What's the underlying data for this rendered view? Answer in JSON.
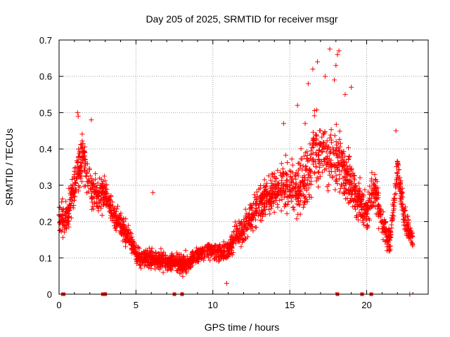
{
  "chart_data": {
    "type": "scatter",
    "title": "Day 205 of 2025, SRMTID for receiver msgr",
    "xlabel": "GPS time / hours",
    "ylabel": "SRMTID / TECUs",
    "xlim": [
      0,
      24
    ],
    "ylim": [
      0,
      0.7
    ],
    "xticks": [
      0,
      5,
      10,
      15,
      20
    ],
    "xtick_labels": [
      "0",
      "5",
      "10",
      "15",
      "20"
    ],
    "yticks": [
      0,
      0.1,
      0.2,
      0.3,
      0.4,
      0.5,
      0.6,
      0.7
    ],
    "ytick_labels": [
      "0",
      "0.1",
      "0.2",
      "0.3",
      "0.4",
      "0.5",
      "0.6",
      "0.7"
    ],
    "grid": true,
    "marker": "plus",
    "color": "#ff0000",
    "zero_markers_x": [
      0.25,
      0.3,
      2.85,
      3.0,
      7.5,
      8.0,
      18.1,
      19.7,
      20.3
    ],
    "trend": {
      "x": [
        0,
        0.5,
        1,
        1.5,
        2,
        2.5,
        3,
        3.5,
        4,
        4.5,
        5,
        5.5,
        6,
        6.5,
        7,
        7.5,
        8,
        8.5,
        9,
        9.5,
        10,
        10.5,
        11,
        11.5,
        12,
        12.5,
        13,
        13.5,
        14,
        14.5,
        15,
        15.5,
        16,
        16.5,
        17,
        17.5,
        18,
        18.5,
        19,
        19.5,
        20,
        20.5,
        21,
        21.5,
        22,
        22.5,
        23
      ],
      "y": [
        0.22,
        0.2,
        0.3,
        0.38,
        0.3,
        0.27,
        0.28,
        0.22,
        0.19,
        0.16,
        0.11,
        0.1,
        0.1,
        0.09,
        0.09,
        0.09,
        0.08,
        0.09,
        0.11,
        0.12,
        0.12,
        0.11,
        0.12,
        0.16,
        0.18,
        0.21,
        0.25,
        0.27,
        0.28,
        0.3,
        0.3,
        0.29,
        0.3,
        0.38,
        0.4,
        0.37,
        0.38,
        0.34,
        0.3,
        0.26,
        0.22,
        0.3,
        0.2,
        0.14,
        0.35,
        0.2,
        0.15
      ],
      "spread": [
        0.07,
        0.08,
        0.1,
        0.1,
        0.09,
        0.07,
        0.07,
        0.06,
        0.05,
        0.05,
        0.04,
        0.04,
        0.04,
        0.04,
        0.04,
        0.04,
        0.04,
        0.04,
        0.04,
        0.04,
        0.04,
        0.04,
        0.04,
        0.05,
        0.06,
        0.07,
        0.08,
        0.08,
        0.09,
        0.1,
        0.1,
        0.11,
        0.14,
        0.14,
        0.14,
        0.12,
        0.14,
        0.12,
        0.1,
        0.09,
        0.08,
        0.1,
        0.07,
        0.06,
        0.07,
        0.06,
        0.05
      ]
    },
    "outliers": [
      {
        "x": 1.2,
        "y": 0.5
      },
      {
        "x": 1.25,
        "y": 0.49
      },
      {
        "x": 2.1,
        "y": 0.48
      },
      {
        "x": 16.2,
        "y": 0.58
      },
      {
        "x": 16.5,
        "y": 0.62
      },
      {
        "x": 16.8,
        "y": 0.64
      },
      {
        "x": 17.3,
        "y": 0.6
      },
      {
        "x": 17.6,
        "y": 0.675
      },
      {
        "x": 18.1,
        "y": 0.66
      },
      {
        "x": 18.2,
        "y": 0.67
      },
      {
        "x": 18.0,
        "y": 0.63
      },
      {
        "x": 17.9,
        "y": 0.59
      },
      {
        "x": 18.6,
        "y": 0.55
      },
      {
        "x": 19.0,
        "y": 0.57
      },
      {
        "x": 15.5,
        "y": 0.52
      },
      {
        "x": 16.0,
        "y": 0.47
      },
      {
        "x": 14.6,
        "y": 0.47
      },
      {
        "x": 21.9,
        "y": 0.45
      },
      {
        "x": 22.8,
        "y": 0.0
      },
      {
        "x": 6.1,
        "y": 0.28
      },
      {
        "x": 10.9,
        "y": 0.03
      }
    ],
    "point_count": 2600
  }
}
